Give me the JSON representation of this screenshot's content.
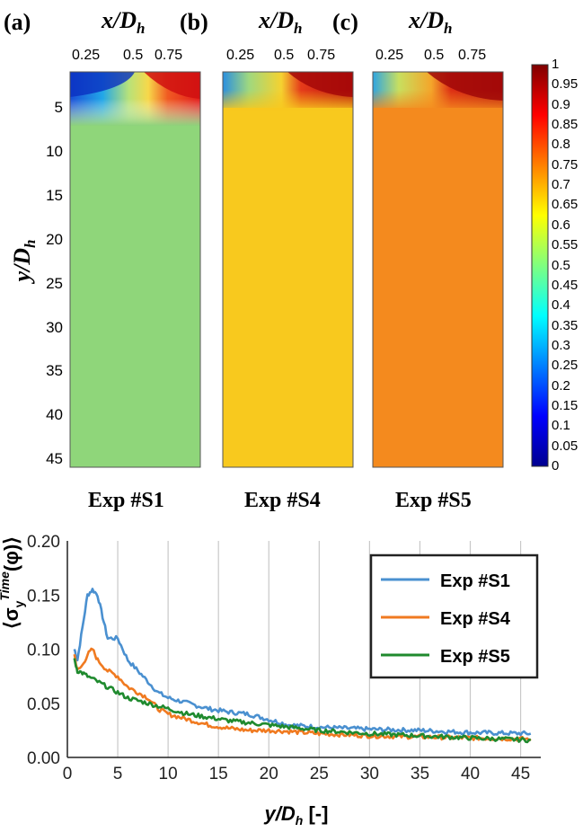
{
  "heatmaps": {
    "x_axis_label": "x/D",
    "x_axis_sub": "h",
    "y_axis_label": "y/D",
    "y_axis_sub": "h",
    "x_ticks": [
      "0.25",
      "0.5",
      "0.75"
    ],
    "y_ticks": [
      "5",
      "10",
      "15",
      "20",
      "25",
      "30",
      "35",
      "40",
      "45"
    ],
    "panels": [
      {
        "letter": "(a)",
        "name": "Exp #S1"
      },
      {
        "letter": "(b)",
        "name": "Exp #S4"
      },
      {
        "letter": "(c)",
        "name": "Exp #S5"
      }
    ],
    "colorbar_ticks": [
      "1",
      "0.95",
      "0.9",
      "0.85",
      "0.8",
      "0.75",
      "0.7",
      "0.65",
      "0.6",
      "0.55",
      "0.5",
      "0.45",
      "0.4",
      "0.35",
      "0.3",
      "0.25",
      "0.2",
      "0.15",
      "0.1",
      "0.05",
      "0"
    ]
  },
  "chart_data": [
    {
      "type": "heatmap",
      "xlim": [
        0,
        1
      ],
      "ylim": [
        0,
        46
      ],
      "color_range": [
        0,
        1
      ],
      "colormap": "jet",
      "panels": [
        {
          "name": "Exp #S1",
          "bulk_value": 0.5,
          "upper_left_value": 0.15,
          "upper_right_value": 0.95
        },
        {
          "name": "Exp #S4",
          "bulk_value": 0.67,
          "upper_left_value": 0.3,
          "upper_right_value": 0.97
        },
        {
          "name": "Exp #S5",
          "bulk_value": 0.77,
          "upper_left_value": 0.35,
          "upper_right_value": 0.97
        }
      ]
    },
    {
      "type": "line",
      "ylabel_text": "[-]",
      "xlabel_text": "y/D",
      "xlabel_sub": "h",
      "xlabel_unit": "[-]",
      "xlim": [
        0,
        47
      ],
      "ylim": [
        0,
        0.2
      ],
      "x_ticks": [
        "0",
        "5",
        "10",
        "15",
        "20",
        "25",
        "30",
        "35",
        "40",
        "45"
      ],
      "y_ticks": [
        "0.00",
        "0.05",
        "0.10",
        "0.15",
        "0.20"
      ],
      "grid": "vertical",
      "legend_position": "top-right",
      "series": [
        {
          "name": "Exp #S1",
          "color": "#4a90d0",
          "x": [
            0.7,
            1.0,
            1.5,
            2.0,
            2.5,
            3.0,
            3.5,
            4.0,
            5.0,
            6.0,
            7.0,
            8.0,
            9.0,
            10,
            12,
            14,
            16,
            18,
            20,
            22,
            25,
            30,
            35,
            40,
            46
          ],
          "y": [
            0.1,
            0.09,
            0.12,
            0.15,
            0.155,
            0.15,
            0.13,
            0.11,
            0.11,
            0.09,
            0.08,
            0.07,
            0.06,
            0.055,
            0.05,
            0.045,
            0.042,
            0.04,
            0.035,
            0.03,
            0.028,
            0.026,
            0.025,
            0.023,
            0.022
          ]
        },
        {
          "name": "Exp #S4",
          "color": "#f07a20",
          "x": [
            0.7,
            1.0,
            1.5,
            2.0,
            2.5,
            3.0,
            4.0,
            5.0,
            6.0,
            7.0,
            8.0,
            9.0,
            10,
            12,
            14,
            16,
            18,
            20,
            22,
            25,
            30,
            35,
            40,
            46
          ],
          "y": [
            0.095,
            0.08,
            0.085,
            0.095,
            0.1,
            0.09,
            0.08,
            0.075,
            0.065,
            0.06,
            0.055,
            0.045,
            0.04,
            0.035,
            0.03,
            0.027,
            0.025,
            0.025,
            0.024,
            0.022,
            0.02,
            0.019,
            0.018,
            0.017
          ]
        },
        {
          "name": "Exp #S5",
          "color": "#1f8a2e",
          "x": [
            0.7,
            1.0,
            1.5,
            2.0,
            3.0,
            4.0,
            5.0,
            6.0,
            8.0,
            10,
            12,
            14,
            16,
            18,
            20,
            22,
            25,
            30,
            35,
            40,
            46
          ],
          "y": [
            0.09,
            0.08,
            0.078,
            0.075,
            0.07,
            0.065,
            0.06,
            0.055,
            0.05,
            0.045,
            0.04,
            0.037,
            0.034,
            0.032,
            0.03,
            0.028,
            0.025,
            0.022,
            0.02,
            0.018,
            0.016
          ]
        }
      ]
    }
  ]
}
